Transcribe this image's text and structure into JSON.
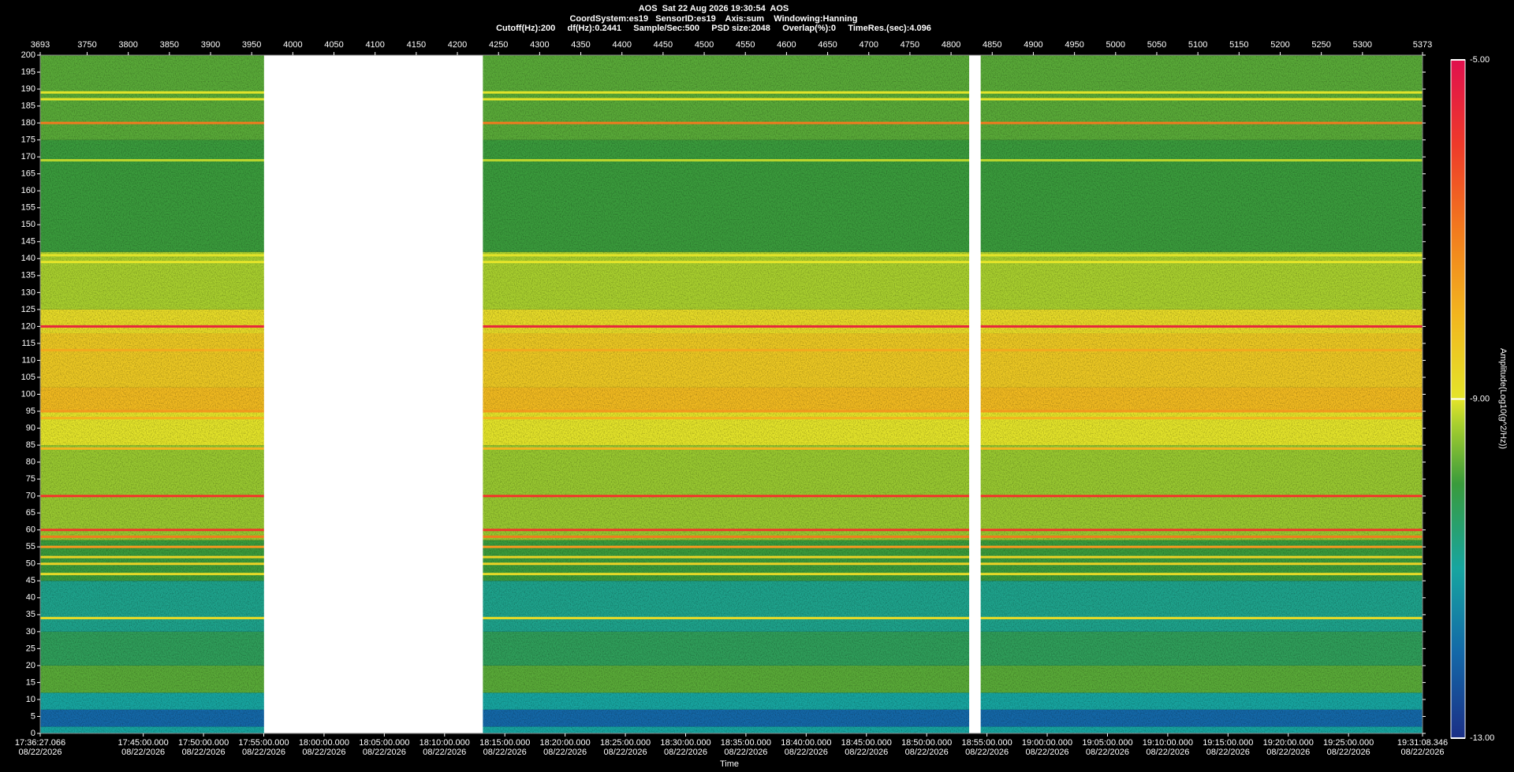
{
  "chart_data": {
    "type": "spectrogram",
    "title": "AOS  Sat 22 Aug 2026 19:30:54  AOS",
    "subtitle": "CoordSystem:es19   SensorID:es19    Axis:sum    Windowing:Hanning",
    "subtitle2": "Cutoff(Hz):200     df(Hz):0.2441     Sample/Sec:500     PSD size:2048     Overlap(%):0     TimeRes.(sec):4.096",
    "xlabel": "Time",
    "colorbar_label": "Amplitude(Log10(g^2/Hz))",
    "xlim": [
      3693,
      5373
    ],
    "xticks": [
      3693,
      3750,
      3800,
      3850,
      3900,
      3950,
      4000,
      4050,
      4100,
      4150,
      4200,
      4250,
      4300,
      4350,
      4400,
      4450,
      4500,
      4550,
      4600,
      4650,
      4700,
      4750,
      4800,
      4850,
      4900,
      4950,
      5000,
      5050,
      5100,
      5150,
      5200,
      5250,
      5300,
      5373
    ],
    "x2lim": [
      63387.066,
      70268.346
    ],
    "x2ticks": [
      {
        "value": 63387.066,
        "label": "17:36:27.066"
      },
      {
        "value": 63900,
        "label": "17:45:00.000"
      },
      {
        "value": 64200,
        "label": "17:50:00.000"
      },
      {
        "value": 64500,
        "label": "17:55:00.000"
      },
      {
        "value": 64800,
        "label": "18:00:00.000"
      },
      {
        "value": 65100,
        "label": "18:05:00.000"
      },
      {
        "value": 65400,
        "label": "18:10:00.000"
      },
      {
        "value": 65700,
        "label": "18:15:00.000"
      },
      {
        "value": 66000,
        "label": "18:20:00.000"
      },
      {
        "value": 66300,
        "label": "18:25:00.000"
      },
      {
        "value": 66600,
        "label": "18:30:00.000"
      },
      {
        "value": 66900,
        "label": "18:35:00.000"
      },
      {
        "value": 67200,
        "label": "18:40:00.000"
      },
      {
        "value": 67500,
        "label": "18:45:00.000"
      },
      {
        "value": 67800,
        "label": "18:50:00.000"
      },
      {
        "value": 68100,
        "label": "18:55:00.000"
      },
      {
        "value": 68400,
        "label": "19:00:00.000"
      },
      {
        "value": 68700,
        "label": "19:05:00.000"
      },
      {
        "value": 69000,
        "label": "19:10:00.000"
      },
      {
        "value": 69300,
        "label": "19:15:00.000"
      },
      {
        "value": 69600,
        "label": "19:20:00.000"
      },
      {
        "value": 69900,
        "label": "19:25:00.000"
      },
      {
        "value": 70268.346,
        "label": "19:31:08.346"
      }
    ],
    "x2tick_date": "08/22/2026",
    "ylim": [
      0,
      200
    ],
    "yticks": [
      0,
      5,
      10,
      15,
      20,
      25,
      30,
      35,
      40,
      45,
      50,
      55,
      60,
      65,
      70,
      75,
      80,
      85,
      90,
      95,
      100,
      105,
      110,
      115,
      120,
      125,
      130,
      135,
      140,
      145,
      150,
      155,
      160,
      165,
      170,
      175,
      180,
      185,
      190,
      195,
      200
    ],
    "clim": [
      -13,
      -5
    ],
    "cticks": [
      {
        "value": -5,
        "label": "-5.00"
      },
      {
        "value": -9,
        "label": "-9.00"
      },
      {
        "value": -13,
        "label": "-13.00"
      }
    ],
    "colorscale": [
      [
        -13,
        "#1b2f86"
      ],
      [
        -12,
        "#1468a8"
      ],
      [
        -11,
        "#17a5a0"
      ],
      [
        -10,
        "#3a9b3c"
      ],
      [
        -9.3,
        "#a8cf2e"
      ],
      [
        -9,
        "#e4e42a"
      ],
      [
        -8,
        "#f2b51f"
      ],
      [
        -7,
        "#f27a1e"
      ],
      [
        -6,
        "#ee3a2a"
      ],
      [
        -5,
        "#e0104e"
      ]
    ],
    "bands": [
      {
        "from": 0,
        "to": 2,
        "amplitude": -11
      },
      {
        "from": 2,
        "to": 7,
        "amplitude": -12
      },
      {
        "from": 7,
        "to": 12,
        "amplitude": -11
      },
      {
        "from": 12,
        "to": 20,
        "amplitude": -9.8
      },
      {
        "from": 20,
        "to": 30,
        "amplitude": -10.3
      },
      {
        "from": 30,
        "to": 45,
        "amplitude": -10.8
      },
      {
        "from": 45,
        "to": 57,
        "amplitude": -10
      },
      {
        "from": 57,
        "to": 85,
        "amplitude": -9.4
      },
      {
        "from": 85,
        "to": 95,
        "amplitude": -9
      },
      {
        "from": 95,
        "to": 102,
        "amplitude": -8.1
      },
      {
        "from": 102,
        "to": 118,
        "amplitude": -8.4
      },
      {
        "from": 118,
        "to": 125,
        "amplitude": -8.8
      },
      {
        "from": 125,
        "to": 142,
        "amplitude": -9.3
      },
      {
        "from": 142,
        "to": 175,
        "amplitude": -10
      },
      {
        "from": 175,
        "to": 200,
        "amplitude": -9.8
      }
    ],
    "lines": [
      {
        "freq": 120,
        "amplitude": -5.5
      },
      {
        "freq": 70,
        "amplitude": -6
      },
      {
        "freq": 60,
        "amplitude": -6
      },
      {
        "freq": 58,
        "amplitude": -7
      },
      {
        "freq": 55,
        "amplitude": -7.5
      },
      {
        "freq": 52,
        "amplitude": -8.6
      },
      {
        "freq": 50,
        "amplitude": -8.6
      },
      {
        "freq": 47,
        "amplitude": -8.8
      },
      {
        "freq": 34,
        "amplitude": -8.8
      },
      {
        "freq": 180,
        "amplitude": -7
      },
      {
        "freq": 189,
        "amplitude": -9
      },
      {
        "freq": 187,
        "amplitude": -9
      },
      {
        "freq": 141,
        "amplitude": -9
      },
      {
        "freq": 139,
        "amplitude": -9
      },
      {
        "freq": 95,
        "amplitude": -7.5
      },
      {
        "freq": 93,
        "amplitude": -8
      },
      {
        "freq": 84,
        "amplitude": -8
      },
      {
        "freq": 113,
        "amplitude": -7.8
      },
      {
        "freq": 169,
        "amplitude": -9.2
      }
    ],
    "gaps": [
      [
        3965,
        4231
      ],
      [
        4822,
        4836
      ]
    ]
  }
}
